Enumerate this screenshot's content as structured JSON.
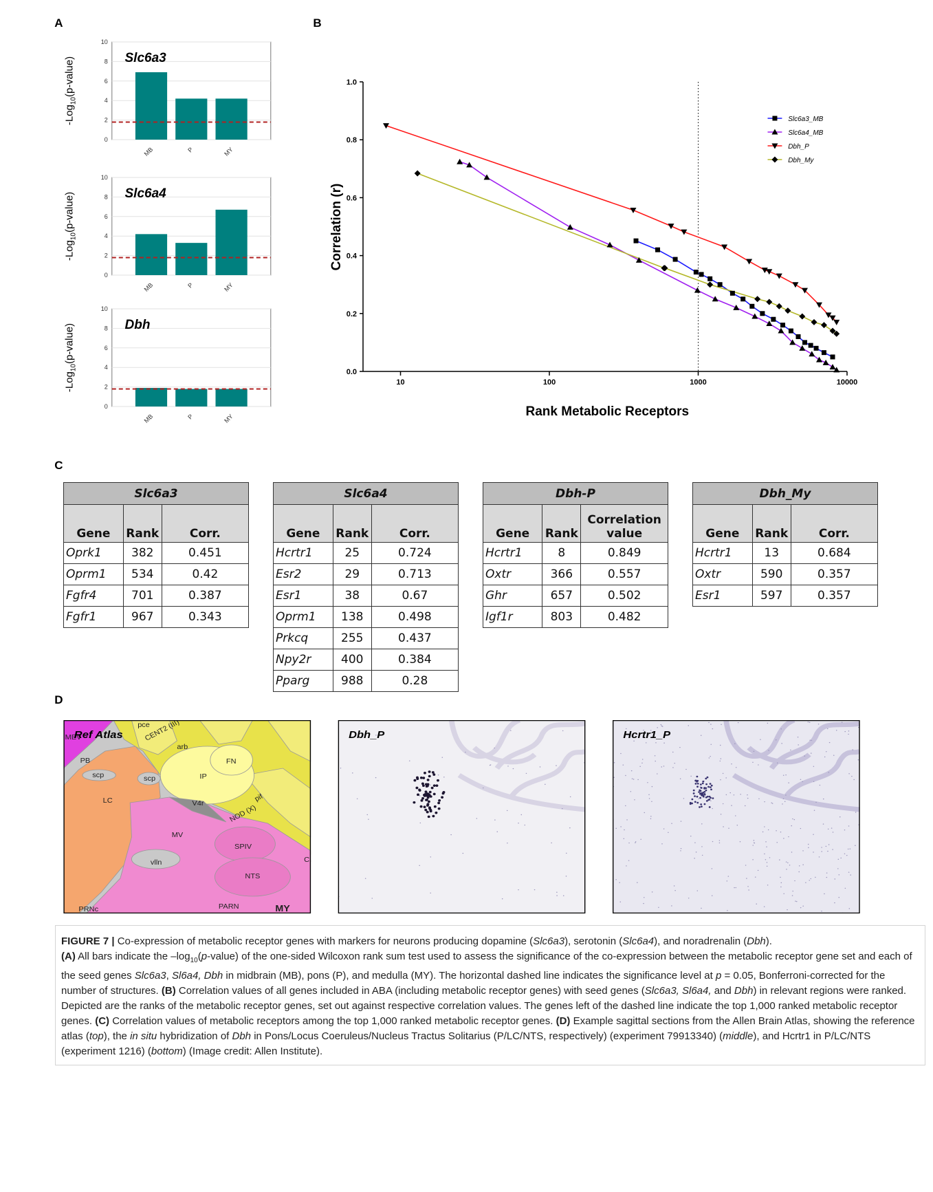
{
  "panel_labels": [
    "A",
    "B",
    "C",
    "D"
  ],
  "chart_data": [
    {
      "type": "bar",
      "title": "Slc6a3",
      "y_label": {
        "prefix": "-Log",
        "sub": "10",
        "suffix": "(p-value)"
      },
      "categories": [
        "MB",
        "P",
        "MY"
      ],
      "values": [
        6.9,
        4.2,
        4.2
      ],
      "color": "#00807f",
      "ylim": [
        0,
        10
      ],
      "yticks": [
        0,
        2,
        4,
        6,
        8,
        10
      ],
      "grid": true,
      "threshold": 1.8,
      "threshold_color": "#b22222"
    },
    {
      "type": "bar",
      "title": "Slc6a4",
      "y_label": {
        "prefix": "-Log",
        "sub": "10",
        "suffix": "(p-value)"
      },
      "categories": [
        "MB",
        "P",
        "MY"
      ],
      "values": [
        4.2,
        3.3,
        6.7
      ],
      "color": "#00807f",
      "ylim": [
        0,
        10
      ],
      "yticks": [
        0,
        2,
        4,
        6,
        8,
        10
      ],
      "grid": true,
      "threshold": 1.8,
      "threshold_color": "#b22222"
    },
    {
      "type": "bar",
      "title": "Dbh",
      "y_label": {
        "prefix": "-Log",
        "sub": "10",
        "suffix": "(p-value)"
      },
      "categories": [
        "MB",
        "P",
        "MY"
      ],
      "values": [
        1.9,
        1.8,
        1.8
      ],
      "color": "#00807f",
      "ylim": [
        0,
        10
      ],
      "yticks": [
        0,
        2,
        4,
        6,
        8,
        10
      ],
      "grid": true,
      "threshold": 1.8,
      "threshold_color": "#b22222"
    },
    {
      "type": "line",
      "x_label": "Rank Metabolic Receptors",
      "y_label": "Correlation (r)",
      "xlog": true,
      "xlim": [
        5.6,
        10000
      ],
      "xticks": [
        10,
        100,
        1000,
        10000
      ],
      "ylim": [
        0,
        1
      ],
      "yticks": [
        {
          "value": 0,
          "label": "0.0"
        },
        0.2,
        0.4,
        0.6,
        0.8,
        {
          "value": 1,
          "label": "1.0"
        }
      ],
      "vline": 1000,
      "legend": "upper right",
      "series": [
        {
          "name": "Slc6a3_MB",
          "color": "#1a1aff",
          "marker": "square",
          "marker_color": "#000000",
          "x": [
            382,
            534,
            701,
            967,
            1050,
            1200,
            1400,
            1700,
            2000,
            2300,
            2700,
            3200,
            3700,
            4200,
            4700,
            5200,
            5700,
            6200,
            7000,
            8000
          ],
          "values": [
            0.451,
            0.42,
            0.387,
            0.343,
            0.335,
            0.32,
            0.3,
            0.27,
            0.25,
            0.225,
            0.2,
            0.18,
            0.16,
            0.14,
            0.12,
            0.1,
            0.09,
            0.08,
            0.065,
            0.05
          ]
        },
        {
          "name": "Slc6a4_MB",
          "color": "#a020f0",
          "marker": "triangle-up",
          "marker_color": "#000000",
          "x": [
            25,
            29,
            38,
            138,
            255,
            400,
            988,
            1300,
            1800,
            2400,
            3000,
            3600,
            4300,
            5000,
            5800,
            6500,
            7200,
            8000,
            8500
          ],
          "values": [
            0.724,
            0.713,
            0.67,
            0.498,
            0.437,
            0.384,
            0.28,
            0.25,
            0.22,
            0.19,
            0.165,
            0.14,
            0.1,
            0.08,
            0.06,
            0.04,
            0.03,
            0.015,
            0.005
          ]
        },
        {
          "name": "Dbh_P",
          "color": "#ff1a1a",
          "marker": "triangle-down",
          "marker_color": "#000000",
          "x": [
            8,
            366,
            657,
            803,
            1500,
            2200,
            2800,
            3000,
            3500,
            4500,
            5200,
            6500,
            7500,
            8000,
            8500
          ],
          "values": [
            0.849,
            0.557,
            0.502,
            0.482,
            0.43,
            0.38,
            0.35,
            0.345,
            0.33,
            0.3,
            0.28,
            0.23,
            0.195,
            0.185,
            0.17
          ]
        },
        {
          "name": "Dbh_My",
          "color": "#b5b82a",
          "marker": "diamond",
          "marker_color": "#000000",
          "x": [
            13,
            590,
            597,
            1200,
            2500,
            3000,
            3500,
            4000,
            5000,
            6000,
            7000,
            8000,
            8500
          ],
          "values": [
            0.684,
            0.357,
            0.357,
            0.3,
            0.25,
            0.24,
            0.225,
            0.21,
            0.19,
            0.17,
            0.16,
            0.14,
            0.13
          ]
        }
      ]
    }
  ],
  "tables": [
    {
      "title": "Slc6a3",
      "columns": [
        "Gene",
        "Rank",
        "Corr."
      ],
      "rows": [
        [
          "Oprk1",
          382,
          0.451
        ],
        [
          "Oprm1",
          534,
          0.42
        ],
        [
          "Fgfr4",
          701,
          0.387
        ],
        [
          "Fgfr1",
          967,
          0.343
        ]
      ]
    },
    {
      "title": "Slc6a4",
      "columns": [
        "Gene",
        "Rank",
        "Corr."
      ],
      "rows": [
        [
          "Hcrtr1",
          25,
          0.724
        ],
        [
          "Esr2",
          29,
          0.713
        ],
        [
          "Esr1",
          38,
          0.67
        ],
        [
          "Oprm1",
          138,
          0.498
        ],
        [
          "Prkcq",
          255,
          0.437
        ],
        [
          "Npy2r",
          400,
          0.384
        ],
        [
          "Pparg",
          988,
          0.28
        ]
      ]
    },
    {
      "title": "Dbh-P",
      "columns": [
        "Gene",
        "Rank",
        "Correlation value"
      ],
      "rows": [
        [
          "Hcrtr1",
          8,
          0.849
        ],
        [
          "Oxtr",
          366,
          0.557
        ],
        [
          "Ghr",
          657,
          0.502
        ],
        [
          "Igf1r",
          803,
          0.482
        ]
      ]
    },
    {
      "title": "Dbh_My",
      "columns": [
        "Gene",
        "Rank",
        "Corr."
      ],
      "rows": [
        [
          "Hcrtr1",
          13,
          0.684
        ],
        [
          "Oxtr",
          590,
          0.357
        ],
        [
          "Esr1",
          597,
          0.357
        ]
      ]
    }
  ],
  "images": [
    {
      "label": "Ref Atlas",
      "regions": [
        "MEV",
        "pce",
        "CENT2 (III)",
        "arb",
        "FN",
        "IP",
        "PB",
        "scp",
        "scp",
        "LC",
        "V4r",
        "pif",
        "NOD (X)",
        "MV",
        "SPIV",
        "NTS",
        "CU",
        "vlln",
        "PARN",
        "PRNc",
        "MY"
      ]
    },
    {
      "label": "Dbh_P"
    },
    {
      "label": "Hcrtr1_P"
    }
  ],
  "caption": [
    "FIGURE 7 |",
    " Co-expression of metabolic receptor genes with markers for neurons producing dopamine (",
    "Slc6a3",
    "), serotonin (",
    "Slc6a4",
    "), and noradrenalin (",
    "Dbh",
    ").",
    "(A)",
    " All  bars indicate the –log",
    "10",
    "(",
    "p",
    "-value) of the one-sided Wilcoxon rank sum test used to assess the significance of the co-expression between the metabolic receptor gene set and each of the seed genes ",
    "Slc6a3",
    ", ",
    "Sl6a4, Dbh",
    " in midbrain (MB), pons (P), and medulla (MY). The horizontal dashed line indicates the significance level at ",
    "p",
    " = 0.05, Bonferroni-corrected for the number of structures. ",
    "(B)",
    " Correlation values of all genes included in ABA (including metabolic receptor genes) with seed genes (",
    "Slc6a3, Sl6a4,",
    " and ",
    "Dbh",
    ") in relevant regions were ranked. Depicted are the ranks of the metabolic receptor genes, set out against respective correlation values. The genes left of the dashed line indicate the top 1,000 ranked metabolic receptor genes. ",
    "(C)",
    " Correlation values of metabolic receptors among the top 1,000 ranked metabolic receptor genes. ",
    "(D)",
    " Example sagittal sections from the Allen Brain Atlas, showing the reference atlas (",
    "top",
    "), the ",
    "in situ",
    " hybridization of ",
    "Dbh",
    " in Pons/Locus Coeruleus/Nucleus Tractus Solitarius (P/LC/NTS, respectively) (experiment 79913340) (",
    "middle",
    "), and Hcrtr1 in P/LC/NTS (experiment 1216) (",
    "bottom",
    ") (Image credit: Allen Institute)."
  ]
}
